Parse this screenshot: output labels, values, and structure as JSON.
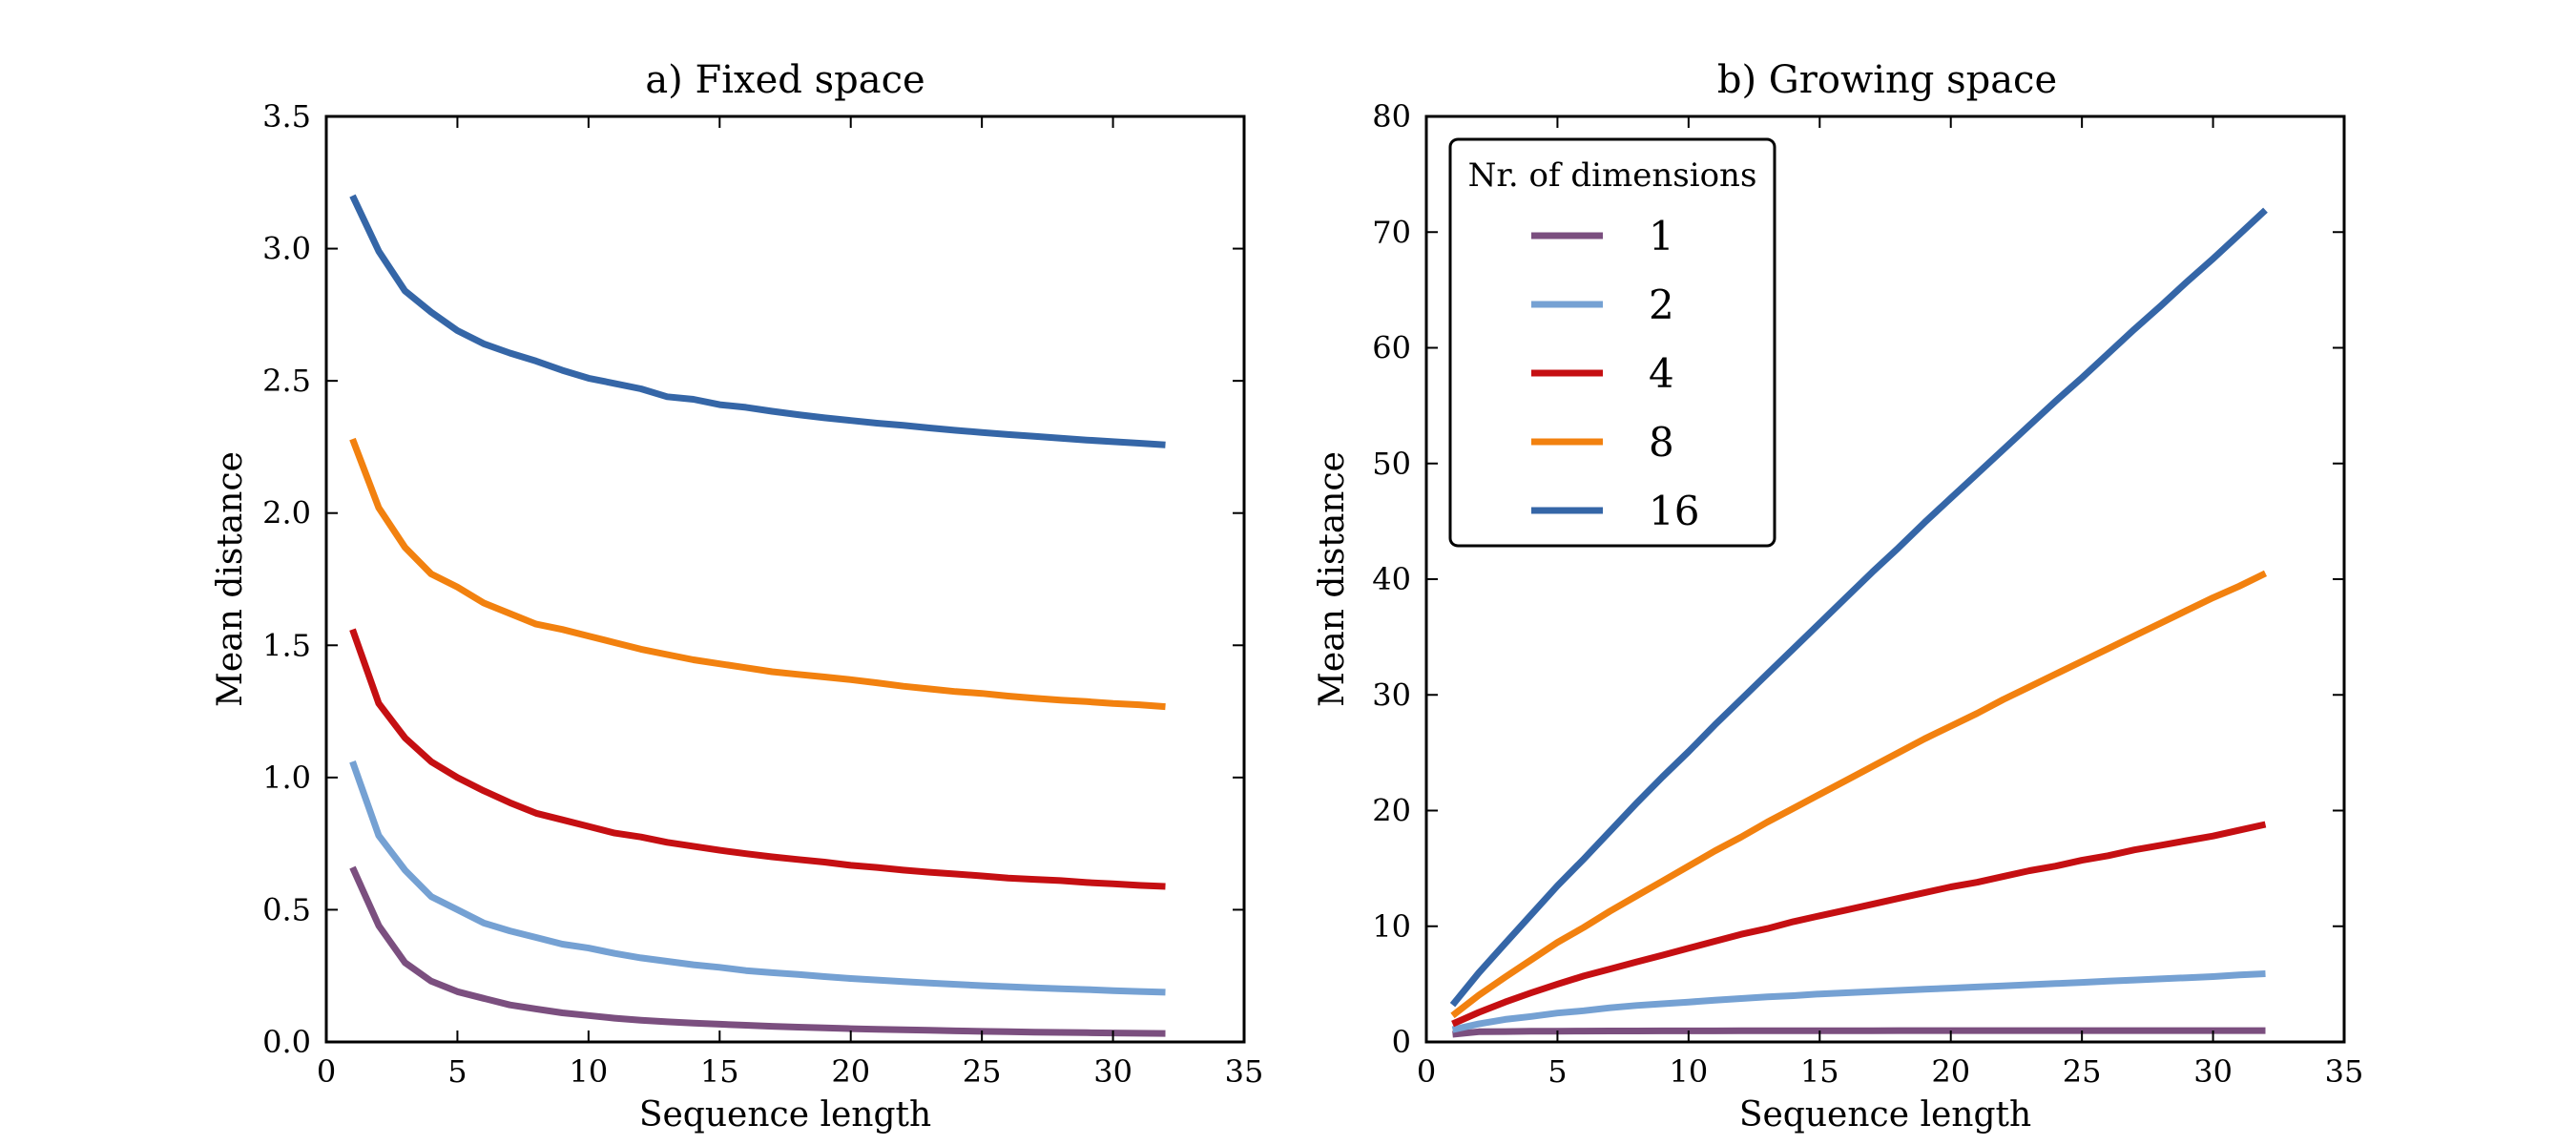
{
  "legend": {
    "title": "Nr. of dimensions",
    "entries": [
      {
        "label": "1",
        "color": "#7b4f7f"
      },
      {
        "label": "2",
        "color": "#75a1d3"
      },
      {
        "label": "4",
        "color": "#c50f12"
      },
      {
        "label": "8",
        "color": "#f2810f"
      },
      {
        "label": "16",
        "color": "#3566a7"
      }
    ]
  },
  "chart_data": [
    {
      "type": "line",
      "title": "a) Fixed space",
      "xlabel": "Sequence length",
      "ylabel": "Mean distance",
      "xlim": [
        0,
        35
      ],
      "ylim": [
        0,
        3.5
      ],
      "xticks": [
        0,
        5,
        10,
        15,
        20,
        25,
        30,
        35
      ],
      "xtick_labels": [
        "0",
        "5",
        "10",
        "15",
        "20",
        "25",
        "30",
        "35"
      ],
      "yticks": [
        0,
        0.5,
        1.0,
        1.5,
        2.0,
        2.5,
        3.0,
        3.5
      ],
      "ytick_labels": [
        "0.0",
        "0.5",
        "1.0",
        "1.5",
        "2.0",
        "2.5",
        "3.0",
        "3.5"
      ],
      "grid": false,
      "x": [
        1,
        2,
        3,
        4,
        5,
        6,
        7,
        8,
        9,
        10,
        11,
        12,
        13,
        14,
        15,
        16,
        17,
        18,
        19,
        20,
        21,
        22,
        23,
        24,
        25,
        26,
        27,
        28,
        29,
        30,
        31,
        32
      ],
      "series": [
        {
          "name": "1",
          "color": "#7b4f7f",
          "values": [
            0.66,
            0.44,
            0.3,
            0.23,
            0.19,
            0.165,
            0.14,
            0.125,
            0.11,
            0.1,
            0.09,
            0.082,
            0.076,
            0.071,
            0.067,
            0.063,
            0.059,
            0.056,
            0.053,
            0.05,
            0.048,
            0.046,
            0.044,
            0.042,
            0.04,
            0.039,
            0.037,
            0.036,
            0.035,
            0.034,
            0.033,
            0.032
          ]
        },
        {
          "name": "2",
          "color": "#75a1d3",
          "values": [
            1.06,
            0.78,
            0.65,
            0.55,
            0.5,
            0.45,
            0.42,
            0.395,
            0.37,
            0.355,
            0.335,
            0.318,
            0.305,
            0.292,
            0.282,
            0.27,
            0.262,
            0.255,
            0.247,
            0.24,
            0.234,
            0.228,
            0.223,
            0.218,
            0.213,
            0.209,
            0.205,
            0.201,
            0.198,
            0.194,
            0.191,
            0.188
          ]
        },
        {
          "name": "4",
          "color": "#c50f12",
          "values": [
            1.56,
            1.28,
            1.15,
            1.06,
            1.0,
            0.95,
            0.905,
            0.865,
            0.84,
            0.815,
            0.79,
            0.775,
            0.755,
            0.74,
            0.725,
            0.712,
            0.7,
            0.69,
            0.68,
            0.668,
            0.66,
            0.65,
            0.642,
            0.635,
            0.628,
            0.62,
            0.615,
            0.61,
            0.603,
            0.598,
            0.592,
            0.588
          ]
        },
        {
          "name": "8",
          "color": "#f2810f",
          "values": [
            2.28,
            2.02,
            1.87,
            1.77,
            1.72,
            1.66,
            1.62,
            1.58,
            1.56,
            1.535,
            1.51,
            1.485,
            1.465,
            1.445,
            1.43,
            1.415,
            1.4,
            1.39,
            1.38,
            1.37,
            1.358,
            1.345,
            1.335,
            1.325,
            1.318,
            1.308,
            1.3,
            1.293,
            1.287,
            1.28,
            1.275,
            1.268
          ]
        },
        {
          "name": "16",
          "color": "#3566a7",
          "values": [
            3.2,
            2.99,
            2.84,
            2.76,
            2.69,
            2.64,
            2.605,
            2.575,
            2.54,
            2.51,
            2.49,
            2.47,
            2.44,
            2.43,
            2.41,
            2.4,
            2.385,
            2.372,
            2.36,
            2.35,
            2.34,
            2.332,
            2.322,
            2.313,
            2.305,
            2.297,
            2.29,
            2.283,
            2.276,
            2.27,
            2.264,
            2.258
          ]
        }
      ]
    },
    {
      "type": "line",
      "title": "b) Growing space",
      "xlabel": "Sequence length",
      "ylabel": "Mean distance",
      "xlim": [
        0,
        35
      ],
      "ylim": [
        0,
        80
      ],
      "xticks": [
        0,
        5,
        10,
        15,
        20,
        25,
        30,
        35
      ],
      "xtick_labels": [
        "0",
        "5",
        "10",
        "15",
        "20",
        "25",
        "30",
        "35"
      ],
      "yticks": [
        0,
        10,
        20,
        30,
        40,
        50,
        60,
        70,
        80
      ],
      "ytick_labels": [
        "0",
        "10",
        "20",
        "30",
        "40",
        "50",
        "60",
        "70",
        "80"
      ],
      "grid": false,
      "legend_position": "top-left",
      "x": [
        1,
        2,
        3,
        4,
        5,
        6,
        7,
        8,
        9,
        10,
        11,
        12,
        13,
        14,
        15,
        16,
        17,
        18,
        19,
        20,
        21,
        22,
        23,
        24,
        25,
        26,
        27,
        28,
        29,
        30,
        31,
        32
      ],
      "series": [
        {
          "name": "1",
          "color": "#7b4f7f",
          "values": [
            0.66,
            0.88,
            0.9,
            0.92,
            0.93,
            0.94,
            0.95,
            0.95,
            0.96,
            0.96,
            0.96,
            0.97,
            0.97,
            0.97,
            0.97,
            0.97,
            0.97,
            0.98,
            0.98,
            0.98,
            0.98,
            0.98,
            0.98,
            0.98,
            0.98,
            0.98,
            0.98,
            0.98,
            0.98,
            0.98,
            0.98,
            0.98
          ]
        },
        {
          "name": "2",
          "color": "#75a1d3",
          "values": [
            1.06,
            1.56,
            1.95,
            2.2,
            2.5,
            2.7,
            2.95,
            3.15,
            3.3,
            3.45,
            3.6,
            3.75,
            3.9,
            4.0,
            4.15,
            4.25,
            4.35,
            4.45,
            4.55,
            4.65,
            4.75,
            4.85,
            4.95,
            5.05,
            5.15,
            5.25,
            5.35,
            5.45,
            5.55,
            5.65,
            5.8,
            5.9
          ]
        },
        {
          "name": "4",
          "color": "#c50f12",
          "values": [
            1.56,
            2.56,
            3.45,
            4.25,
            5.0,
            5.7,
            6.3,
            6.9,
            7.5,
            8.1,
            8.7,
            9.3,
            9.8,
            10.4,
            10.9,
            11.4,
            11.9,
            12.4,
            12.9,
            13.4,
            13.8,
            14.3,
            14.8,
            15.2,
            15.7,
            16.1,
            16.6,
            17.0,
            17.4,
            17.8,
            18.3,
            18.8
          ]
        },
        {
          "name": "8",
          "color": "#f2810f",
          "values": [
            2.28,
            4.04,
            5.6,
            7.1,
            8.6,
            9.9,
            11.3,
            12.6,
            13.9,
            15.2,
            16.5,
            17.7,
            19.0,
            20.2,
            21.4,
            22.6,
            23.8,
            25.0,
            26.2,
            27.3,
            28.4,
            29.6,
            30.7,
            31.8,
            32.9,
            34.0,
            35.1,
            36.2,
            37.3,
            38.4,
            39.4,
            40.5
          ]
        },
        {
          "name": "16",
          "color": "#3566a7",
          "values": [
            3.2,
            5.98,
            8.5,
            11.0,
            13.5,
            15.8,
            18.2,
            20.6,
            22.9,
            25.1,
            27.4,
            29.6,
            31.8,
            34.0,
            36.2,
            38.4,
            40.6,
            42.7,
            44.9,
            47.0,
            49.1,
            51.2,
            53.3,
            55.4,
            57.4,
            59.5,
            61.6,
            63.6,
            65.7,
            67.7,
            69.8,
            71.9
          ]
        }
      ]
    }
  ]
}
